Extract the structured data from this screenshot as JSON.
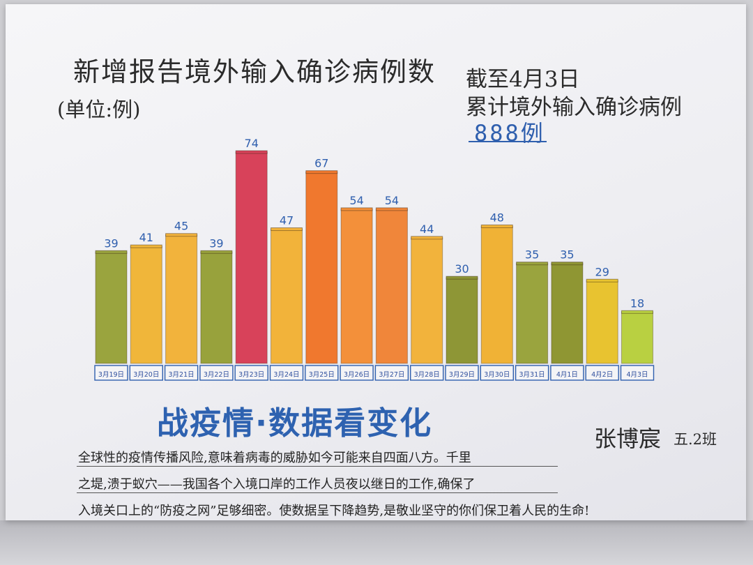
{
  "header": {
    "title": "新增报告境外输入确诊病例数",
    "unit": "(单位:例)"
  },
  "note": {
    "line1": "截至4月3日",
    "line2": "累计境外输入确诊病例",
    "total": "888例"
  },
  "footer": {
    "slogan": "战疫情·数据看变化",
    "author": "张博宸",
    "class": "五.2班",
    "paragraph": [
      "全球性的疫情传播风险,意味着病毒的威胁如今可能来自四面八方。千里",
      "之堤,溃于蚁穴——我国各个入境口岸的工作人员夜以继日的工作,确保了",
      "入境关口上的“防疫之网”足够细密。使数据呈下降趋势,是敬业坚守的你们保卫着人民的生命!"
    ]
  },
  "chart_data": {
    "type": "bar",
    "title": "新增报告境外输入确诊病例数",
    "categories": [
      "3月19日",
      "3月20日",
      "3月21日",
      "3月22日",
      "3月23日",
      "3月24日",
      "3月25日",
      "3月26日",
      "3月27日",
      "3月28日",
      "3月29日",
      "3月30日",
      "3月31日",
      "4月1日",
      "4月2日",
      "4月3日"
    ],
    "values": [
      39,
      41,
      45,
      39,
      74,
      47,
      67,
      54,
      54,
      44,
      30,
      48,
      35,
      35,
      29,
      18
    ],
    "bar_colors": [
      "#9aa43e",
      "#f0b63a",
      "#f2b33c",
      "#98a23c",
      "#d8425a",
      "#f2b33a",
      "#f0782e",
      "#f3903a",
      "#f0863a",
      "#f2b33c",
      "#8e9636",
      "#f0b236",
      "#9aa43e",
      "#8f9633",
      "#e8c330",
      "#b9d041"
    ],
    "ylim": [
      0,
      80
    ],
    "xlabel": "",
    "ylabel": "",
    "grid": false
  }
}
